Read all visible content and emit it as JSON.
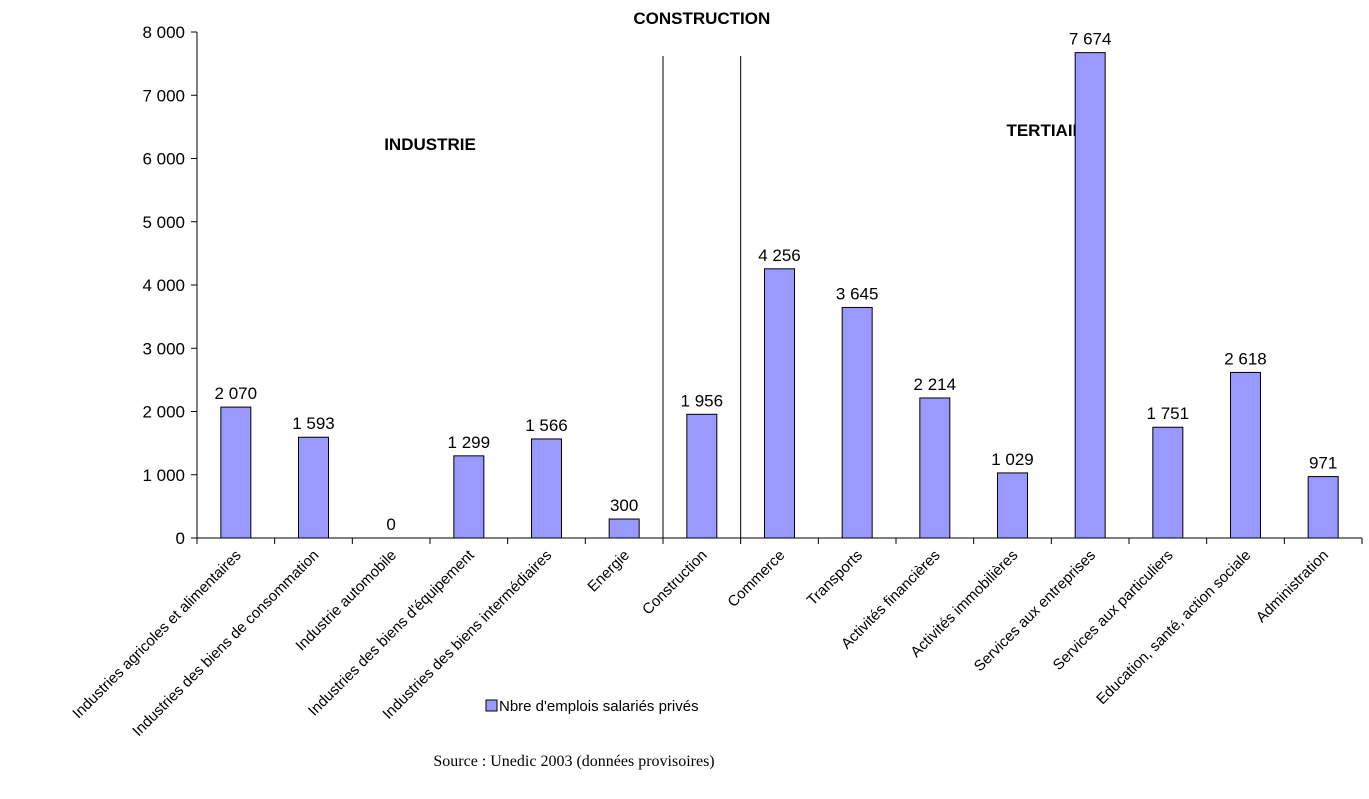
{
  "chart_data": {
    "type": "bar",
    "categories": [
      "Industries agricoles et alimentaires",
      "Industries des biens de consommation",
      "Industrie automobile",
      "Industries des biens d'équipement",
      "Industries des biens intermédiaires",
      "Energie",
      "Construction",
      "Commerce",
      "Transports",
      "Activités financières",
      "Activités immobilières",
      "Services aux entreprises",
      "Services aux particuliers",
      "Education, santé, action sociale",
      "Administration"
    ],
    "series": [
      {
        "name": "Nbre d'emplois salariés privés",
        "values": [
          2070,
          1593,
          0,
          1299,
          1566,
          300,
          1956,
          4256,
          3645,
          2214,
          1029,
          7674,
          1751,
          2618,
          971
        ],
        "value_labels": [
          "2 070",
          "1 593",
          "0",
          "1 299",
          "1 566",
          "300",
          "1 956",
          "4 256",
          "3 645",
          "2 214",
          "1 029",
          "7 674",
          "1 751",
          "2 618",
          "971"
        ]
      }
    ],
    "ylim": [
      0,
      8000
    ],
    "yticks": [
      0,
      1000,
      2000,
      3000,
      4000,
      5000,
      6000,
      7000,
      8000
    ],
    "ytick_labels": [
      "0",
      "1 000",
      "2 000",
      "3 000",
      "4 000",
      "5 000",
      "6 000",
      "7 000",
      "8 000"
    ],
    "sections": [
      {
        "label": "INDUSTRIE",
        "from_index": 0,
        "to_index": 5
      },
      {
        "label": "CONSTRUCTION",
        "from_index": 6,
        "to_index": 6
      },
      {
        "label": "TERTIAIRE",
        "from_index": 7,
        "to_index": 14
      }
    ],
    "bar_color": "#9999ff",
    "legend_position": "bottom",
    "grid": false,
    "source": "Source : Unedic 2003 (données provisoires)"
  }
}
